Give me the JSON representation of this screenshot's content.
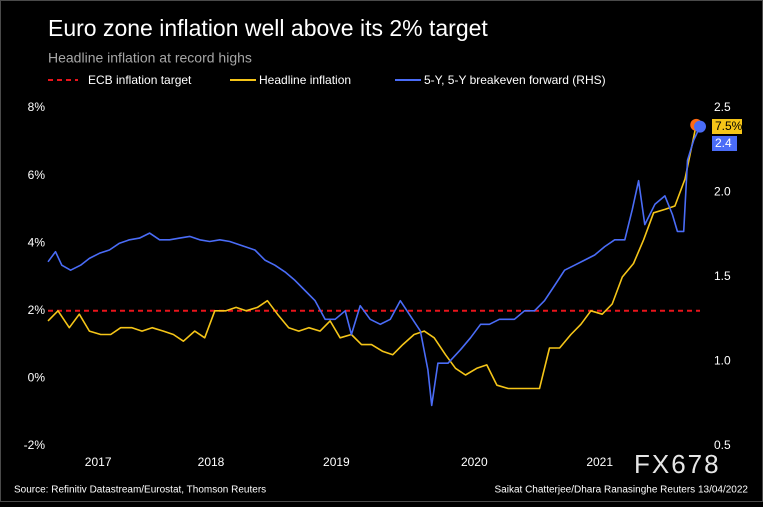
{
  "chart_data": {
    "type": "line",
    "title": "Euro zone inflation well above its 2% target",
    "subtitle": "Headline inflation at record highs",
    "source": "Source: Refinitiv Datastream/Eurostat, Thomson Reuters",
    "credit": "Saikat Chatterjee/Dhara Ranasinghe Reuters 13/04/2022",
    "watermark": "FX678",
    "xlim": [
      2017.0,
      2022.2
    ],
    "xticks": [
      {
        "value": 2017.4,
        "label": "2017"
      },
      {
        "value": 2018.3,
        "label": "2018"
      },
      {
        "value": 2019.3,
        "label": "2019"
      },
      {
        "value": 2020.4,
        "label": "2020"
      },
      {
        "value": 2021.4,
        "label": "2021"
      }
    ],
    "ylim": [
      -2,
      8
    ],
    "yticks": [
      {
        "value": -2,
        "label": "-2%"
      },
      {
        "value": 0,
        "label": "0%"
      },
      {
        "value": 2,
        "label": "2%"
      },
      {
        "value": 4,
        "label": "4%"
      },
      {
        "value": 6,
        "label": "6%"
      },
      {
        "value": 8,
        "label": "8%"
      }
    ],
    "y2lim": [
      0.5,
      2.5
    ],
    "y2ticks": [
      0.5,
      {
        "value": 1.0,
        "label": "1.0"
      },
      1.5,
      {
        "value": 2.0,
        "label": "2.0"
      },
      2.5
    ],
    "target": {
      "name": "ECB inflation target",
      "value": 2,
      "color": "#e8141b"
    },
    "series": [
      {
        "name": "Headline inflation",
        "color": "#f5c518",
        "end_marker_color": "#ff6a13",
        "end_label": "7.5%",
        "x": [
          2017.0,
          2017.08,
          2017.17,
          2017.25,
          2017.33,
          2017.42,
          2017.5,
          2017.58,
          2017.67,
          2017.75,
          2017.83,
          2017.92,
          2018.0,
          2018.08,
          2018.17,
          2018.25,
          2018.33,
          2018.42,
          2018.5,
          2018.58,
          2018.67,
          2018.75,
          2018.83,
          2018.92,
          2019.0,
          2019.08,
          2019.17,
          2019.25,
          2019.33,
          2019.42,
          2019.5,
          2019.58,
          2019.67,
          2019.75,
          2019.83,
          2019.92,
          2020.0,
          2020.08,
          2020.17,
          2020.25,
          2020.33,
          2020.42,
          2020.5,
          2020.58,
          2020.67,
          2020.75,
          2020.83,
          2020.92,
          2021.0,
          2021.08,
          2021.17,
          2021.25,
          2021.33,
          2021.42,
          2021.5,
          2021.58,
          2021.67,
          2021.75,
          2021.83,
          2021.92,
          2022.0,
          2022.08,
          2022.17
        ],
        "values": [
          1.7,
          2.0,
          1.5,
          1.9,
          1.4,
          1.3,
          1.3,
          1.5,
          1.5,
          1.4,
          1.5,
          1.4,
          1.3,
          1.1,
          1.4,
          1.2,
          2.0,
          2.0,
          2.1,
          2.0,
          2.1,
          2.3,
          1.9,
          1.5,
          1.4,
          1.5,
          1.4,
          1.7,
          1.2,
          1.3,
          1.0,
          1.0,
          0.8,
          0.7,
          1.0,
          1.3,
          1.4,
          1.2,
          0.7,
          0.3,
          0.1,
          0.3,
          0.4,
          -0.2,
          -0.3,
          -0.3,
          -0.3,
          -0.3,
          0.9,
          0.9,
          1.3,
          1.6,
          2.0,
          1.9,
          2.2,
          3.0,
          3.4,
          4.1,
          4.9,
          5.0,
          5.1,
          5.9,
          7.5
        ]
      },
      {
        "name": "5-Y, 5-Y breakeven forward (RHS)",
        "color": "#4a6cf7",
        "axis": "y2",
        "end_marker_color": "#4a6cf7",
        "end_label": "2.4",
        "x": [
          2017.0,
          2017.06,
          2017.11,
          2017.18,
          2017.26,
          2017.33,
          2017.41,
          2017.49,
          2017.57,
          2017.65,
          2017.73,
          2017.81,
          2017.89,
          2017.97,
          2018.05,
          2018.13,
          2018.21,
          2018.29,
          2018.37,
          2018.45,
          2018.57,
          2018.65,
          2018.73,
          2018.81,
          2018.89,
          2018.97,
          2019.05,
          2019.13,
          2019.21,
          2019.29,
          2019.37,
          2019.42,
          2019.49,
          2019.57,
          2019.65,
          2019.73,
          2019.81,
          2019.89,
          2019.97,
          2020.03,
          2020.06,
          2020.11,
          2020.19,
          2020.29,
          2020.37,
          2020.45,
          2020.52,
          2020.6,
          2020.72,
          2020.8,
          2020.88,
          2020.96,
          2021.04,
          2021.12,
          2021.2,
          2021.28,
          2021.36,
          2021.44,
          2021.52,
          2021.6,
          2021.66,
          2021.71,
          2021.76,
          2021.84,
          2021.92,
          2021.98,
          2022.02,
          2022.07,
          2022.1,
          2022.15,
          2022.2
        ],
        "values": [
          1.59,
          1.65,
          1.57,
          1.54,
          1.57,
          1.61,
          1.64,
          1.66,
          1.7,
          1.72,
          1.73,
          1.76,
          1.72,
          1.72,
          1.73,
          1.74,
          1.72,
          1.71,
          1.72,
          1.71,
          1.68,
          1.66,
          1.6,
          1.57,
          1.53,
          1.48,
          1.42,
          1.36,
          1.25,
          1.25,
          1.3,
          1.16,
          1.33,
          1.25,
          1.22,
          1.25,
          1.36,
          1.27,
          1.18,
          0.95,
          0.74,
          0.99,
          0.99,
          1.07,
          1.14,
          1.22,
          1.22,
          1.25,
          1.25,
          1.3,
          1.3,
          1.36,
          1.45,
          1.54,
          1.57,
          1.6,
          1.63,
          1.68,
          1.72,
          1.72,
          1.9,
          2.07,
          1.81,
          1.93,
          1.98,
          1.87,
          1.77,
          1.77,
          2.19,
          2.31,
          2.39
        ]
      }
    ]
  }
}
